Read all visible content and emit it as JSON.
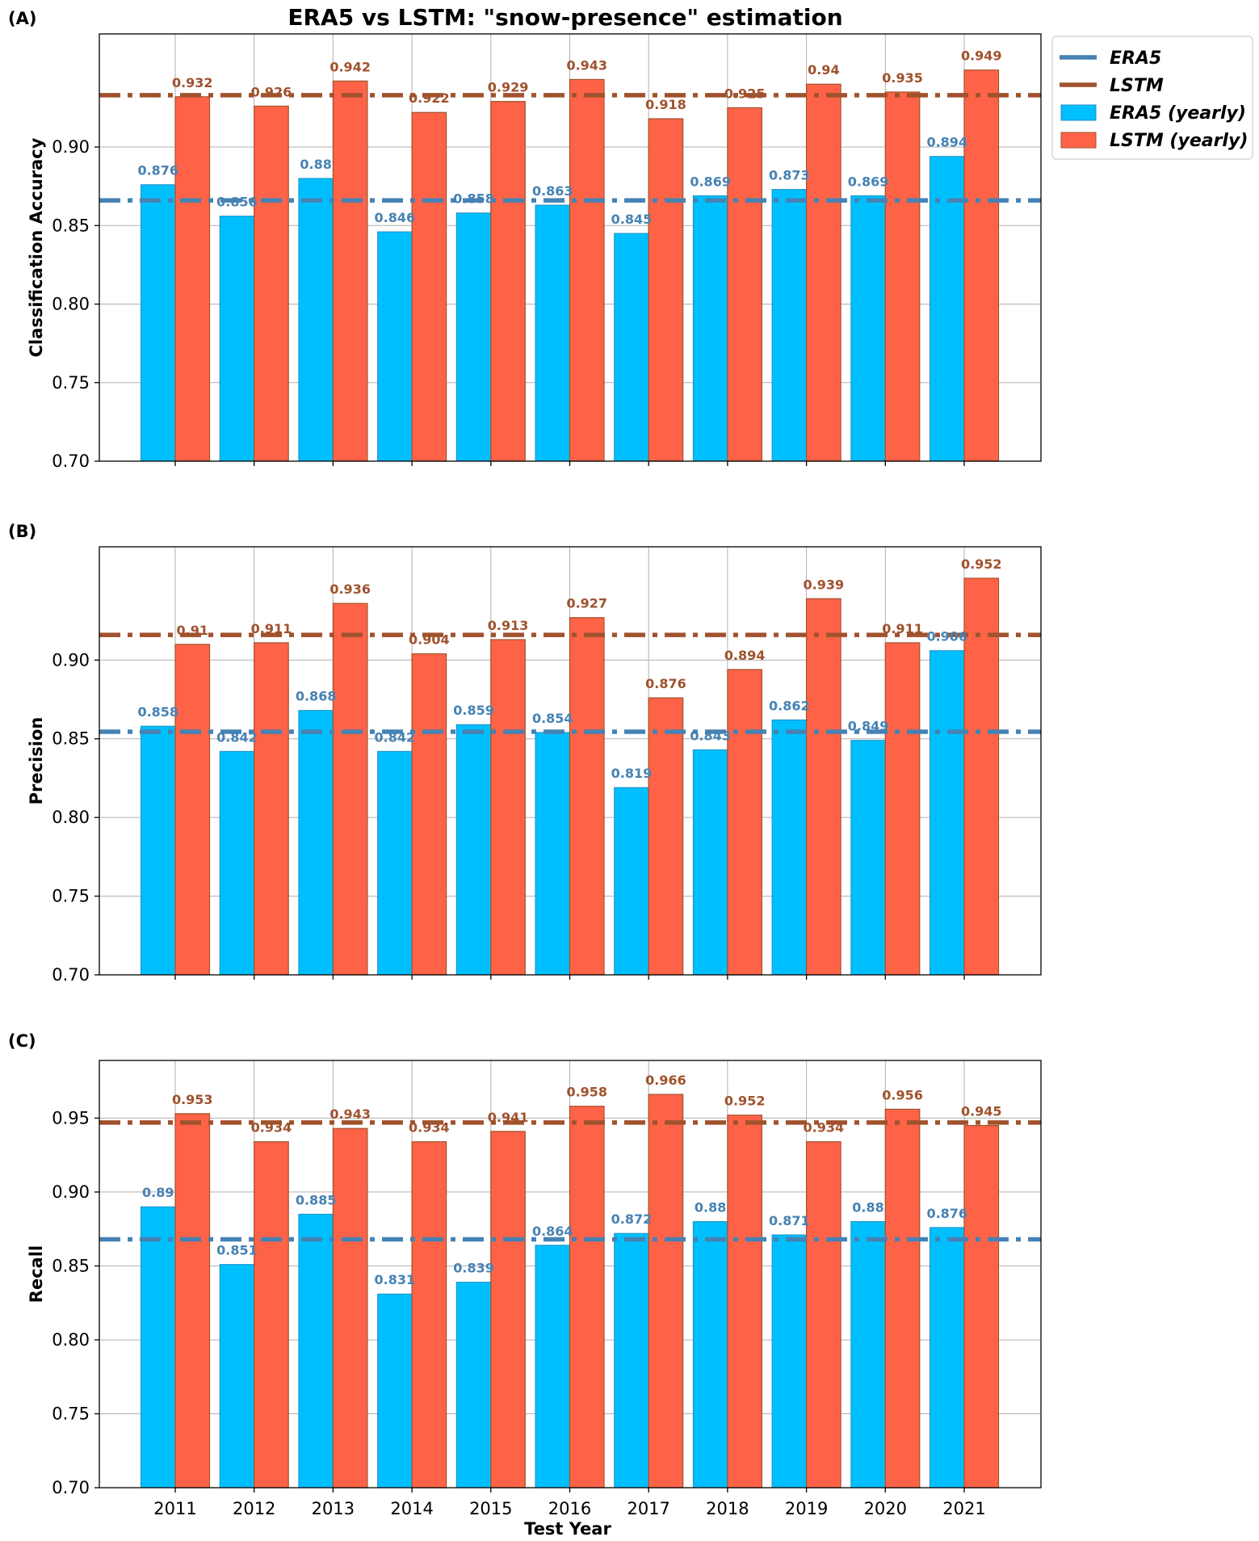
{
  "chart_data": [
    {
      "type": "bar",
      "panel_label": "(A)",
      "title": "ERA5 vs LSTM: \"snow-presence\" estimation",
      "ylabel": "Classification Accuracy",
      "xlabel": "",
      "ylim": [
        0.7,
        0.972
      ],
      "yticks": [
        "0.70",
        "0.75",
        "0.80",
        "0.85",
        "0.90"
      ],
      "ytick_values": [
        0.7,
        0.75,
        0.8,
        0.85,
        0.9
      ],
      "categories": [
        "2011",
        "2012",
        "2013",
        "2014",
        "2015",
        "2016",
        "2017",
        "2018",
        "2019",
        "2020",
        "2021"
      ],
      "series": [
        {
          "name": "ERA5 (yearly)",
          "values": [
            0.876,
            0.856,
            0.88,
            0.846,
            0.858,
            0.863,
            0.845,
            0.869,
            0.873,
            0.869,
            0.894
          ],
          "labels": [
            "0.876",
            "0.856",
            "0.88",
            "0.846",
            "0.858",
            "0.863",
            "0.845",
            "0.869",
            "0.873",
            "0.869",
            "0.894"
          ]
        },
        {
          "name": "LSTM (yearly)",
          "values": [
            0.932,
            0.926,
            0.942,
            0.922,
            0.929,
            0.943,
            0.918,
            0.925,
            0.94,
            0.935,
            0.949
          ],
          "labels": [
            "0.932",
            "0.926",
            "0.942",
            "0.922",
            "0.929",
            "0.943",
            "0.918",
            "0.925",
            "0.94",
            "0.935",
            "0.949"
          ]
        }
      ],
      "reference_lines": [
        {
          "name": "ERA5",
          "value": 0.866
        },
        {
          "name": "LSTM",
          "value": 0.933
        }
      ],
      "grid": true,
      "legend_position": "outside-right"
    },
    {
      "type": "bar",
      "panel_label": "(B)",
      "title": "",
      "ylabel": "Precision",
      "xlabel": "",
      "ylim": [
        0.7,
        0.972
      ],
      "yticks": [
        "0.70",
        "0.75",
        "0.80",
        "0.85",
        "0.90"
      ],
      "ytick_values": [
        0.7,
        0.75,
        0.8,
        0.85,
        0.9
      ],
      "categories": [
        "2011",
        "2012",
        "2013",
        "2014",
        "2015",
        "2016",
        "2017",
        "2018",
        "2019",
        "2020",
        "2021"
      ],
      "series": [
        {
          "name": "ERA5 (yearly)",
          "values": [
            0.858,
            0.842,
            0.868,
            0.842,
            0.859,
            0.854,
            0.819,
            0.843,
            0.862,
            0.849,
            0.906
          ],
          "labels": [
            "0.858",
            "0.842",
            "0.868",
            "0.842",
            "0.859",
            "0.854",
            "0.819",
            "0.843",
            "0.862",
            "0.849",
            "0.906"
          ]
        },
        {
          "name": "LSTM (yearly)",
          "values": [
            0.91,
            0.911,
            0.936,
            0.904,
            0.913,
            0.927,
            0.876,
            0.894,
            0.939,
            0.911,
            0.952
          ],
          "labels": [
            "0.91",
            "0.911",
            "0.936",
            "0.904",
            "0.913",
            "0.927",
            "0.876",
            "0.894",
            "0.939",
            "0.911",
            "0.952"
          ]
        }
      ],
      "reference_lines": [
        {
          "name": "ERA5",
          "value": 0.8545
        },
        {
          "name": "LSTM",
          "value": 0.916
        }
      ],
      "grid": true
    },
    {
      "type": "bar",
      "panel_label": "(C)",
      "title": "",
      "ylabel": "Recall",
      "xlabel": "Test Year",
      "ylim": [
        0.7,
        0.989
      ],
      "yticks": [
        "0.70",
        "0.75",
        "0.80",
        "0.85",
        "0.90",
        "0.95"
      ],
      "ytick_values": [
        0.7,
        0.75,
        0.8,
        0.85,
        0.9,
        0.95
      ],
      "categories": [
        "2011",
        "2012",
        "2013",
        "2014",
        "2015",
        "2016",
        "2017",
        "2018",
        "2019",
        "2020",
        "2021"
      ],
      "series": [
        {
          "name": "ERA5 (yearly)",
          "values": [
            0.89,
            0.851,
            0.885,
            0.831,
            0.839,
            0.864,
            0.872,
            0.88,
            0.871,
            0.88,
            0.876
          ],
          "labels": [
            "0.89",
            "0.851",
            "0.885",
            "0.831",
            "0.839",
            "0.864",
            "0.872",
            "0.88",
            "0.871",
            "0.88",
            "0.876"
          ]
        },
        {
          "name": "LSTM (yearly)",
          "values": [
            0.953,
            0.934,
            0.943,
            0.934,
            0.941,
            0.958,
            0.966,
            0.952,
            0.934,
            0.956,
            0.945
          ],
          "labels": [
            "0.953",
            "0.934",
            "0.943",
            "0.934",
            "0.941",
            "0.958",
            "0.966",
            "0.952",
            "0.934",
            "0.956",
            "0.945"
          ]
        }
      ],
      "reference_lines": [
        {
          "name": "ERA5",
          "value": 0.868
        },
        {
          "name": "LSTM",
          "value": 0.947
        }
      ],
      "grid": true
    }
  ],
  "legend": {
    "items": [
      {
        "label": "ERA5",
        "kind": "line",
        "color": "#4682b4"
      },
      {
        "label": "LSTM",
        "kind": "line",
        "color": "#a0522d"
      },
      {
        "label": "ERA5 (yearly)",
        "kind": "patch",
        "color": "#00bfff"
      },
      {
        "label": "LSTM (yearly)",
        "kind": "patch",
        "color": "#ff6347"
      }
    ]
  },
  "colors": {
    "era5_bar": "#00bfff",
    "era5_bar_edge": "#1f8fc4",
    "lstm_bar": "#ff6347",
    "lstm_bar_edge": "#a0522d",
    "era5_line": "#4682b4",
    "lstm_line": "#a0522d",
    "era5_label": "#4682b4",
    "lstm_label": "#a0522d",
    "grid": "#b0b0b0"
  }
}
